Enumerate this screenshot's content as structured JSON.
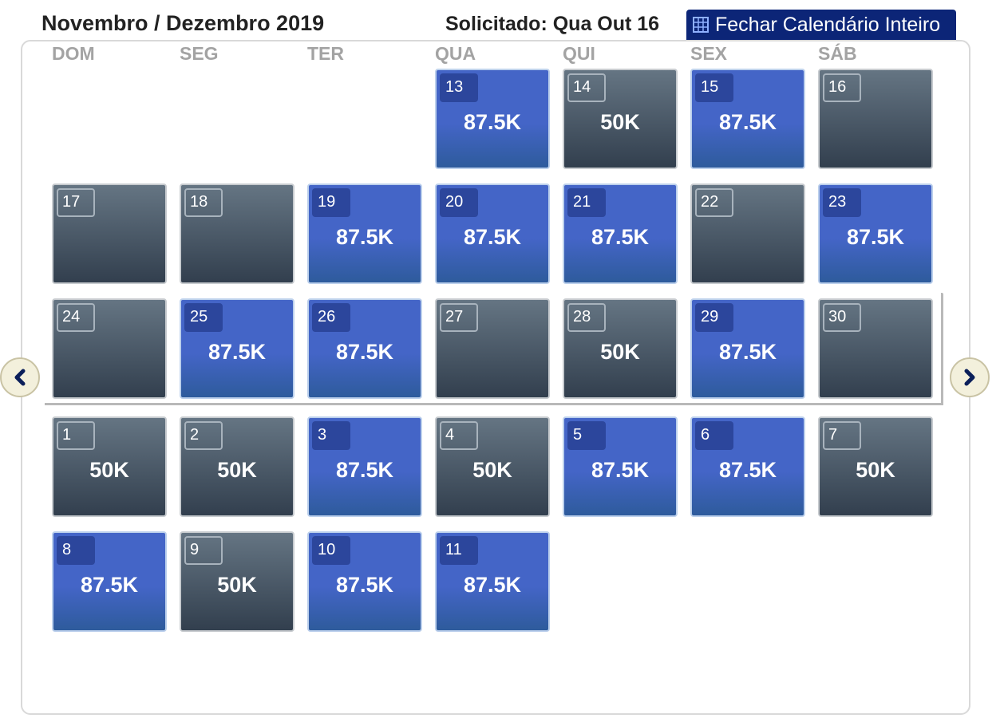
{
  "header": {
    "month_title": "Novembro / Dezembro 2019",
    "requested": "Solicitado: Qua Out 16",
    "close_label": "Fechar Calendário Inteiro",
    "close_icon": "grid-icon"
  },
  "weekdays": [
    "DOM",
    "SEG",
    "TER",
    "QUA",
    "QUI",
    "SEX",
    "SÁB"
  ],
  "colors": {
    "available_blue": "#4465c7",
    "unavailable_gray": "#4b5866",
    "header_button": "#0c2577"
  },
  "weeks": [
    [
      null,
      null,
      null,
      {
        "day": "13",
        "price": "87.5K",
        "type": "blue"
      },
      {
        "day": "14",
        "price": "50K",
        "type": "gray"
      },
      {
        "day": "15",
        "price": "87.5K",
        "type": "blue"
      },
      {
        "day": "16",
        "price": "",
        "type": "gray"
      }
    ],
    [
      {
        "day": "17",
        "price": "",
        "type": "gray"
      },
      {
        "day": "18",
        "price": "",
        "type": "gray"
      },
      {
        "day": "19",
        "price": "87.5K",
        "type": "blue"
      },
      {
        "day": "20",
        "price": "87.5K",
        "type": "blue"
      },
      {
        "day": "21",
        "price": "87.5K",
        "type": "blue"
      },
      {
        "day": "22",
        "price": "",
        "type": "gray"
      },
      {
        "day": "23",
        "price": "87.5K",
        "type": "blue"
      }
    ],
    [
      {
        "day": "24",
        "price": "",
        "type": "gray"
      },
      {
        "day": "25",
        "price": "87.5K",
        "type": "blue"
      },
      {
        "day": "26",
        "price": "87.5K",
        "type": "blue"
      },
      {
        "day": "27",
        "price": "",
        "type": "gray"
      },
      {
        "day": "28",
        "price": "50K",
        "type": "gray"
      },
      {
        "day": "29",
        "price": "87.5K",
        "type": "blue"
      },
      {
        "day": "30",
        "price": "",
        "type": "gray"
      }
    ],
    [
      {
        "day": "1",
        "price": "50K",
        "type": "gray"
      },
      {
        "day": "2",
        "price": "50K",
        "type": "gray"
      },
      {
        "day": "3",
        "price": "87.5K",
        "type": "blue"
      },
      {
        "day": "4",
        "price": "50K",
        "type": "gray"
      },
      {
        "day": "5",
        "price": "87.5K",
        "type": "blue"
      },
      {
        "day": "6",
        "price": "87.5K",
        "type": "blue"
      },
      {
        "day": "7",
        "price": "50K",
        "type": "gray"
      }
    ],
    [
      {
        "day": "8",
        "price": "87.5K",
        "type": "blue"
      },
      {
        "day": "9",
        "price": "50K",
        "type": "gray"
      },
      {
        "day": "10",
        "price": "87.5K",
        "type": "blue"
      },
      {
        "day": "11",
        "price": "87.5K",
        "type": "blue"
      },
      null,
      null,
      null
    ]
  ],
  "nav": {
    "prev_icon": "chevron-left-icon",
    "next_icon": "chevron-right-icon"
  }
}
